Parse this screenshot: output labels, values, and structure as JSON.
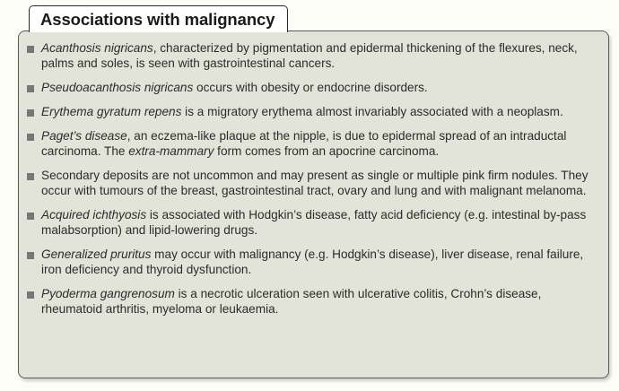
{
  "title": "Associations with malignancy",
  "items": [
    {
      "em": "Acanthosis nigricans",
      "rest": ", characterized by pigmentation and epidermal thickening of the flexures, neck, palms and soles, is seen with gastrointestinal cancers."
    },
    {
      "em": "Pseudoacanthosis nigricans",
      "rest": " occurs with obesity or endocrine disorders."
    },
    {
      "em": "Erythema gyratum repens",
      "rest": " is a migratory erythema almost invariably associated with a neoplasm."
    },
    {
      "em": "Paget’s disease",
      "rest": ", an eczema-like plaque at the nipple, is due to epidermal spread of an intraductal carcinoma. The ",
      "em2": "extra-mammary",
      "rest2": " form comes from an apocrine carcinoma."
    },
    {
      "em": "",
      "rest": "Secondary deposits are not uncommon and may present as single or multiple pink firm nodules. They occur with tumours of the breast, gastrointestinal tract, ovary and lung and with malignant melanoma."
    },
    {
      "em": "Acquired ichthyosis",
      "rest": " is associated with Hodgkin’s disease, fatty acid deficiency (e.g. intestinal by-pass malabsorption) and lipid-lowering drugs."
    },
    {
      "em": "Generalized pruritus",
      "rest": " may occur with malignancy (e.g. Hodgkin’s disease), liver disease, renal failure, iron deficiency and thyroid dysfunction."
    },
    {
      "em": "Pyoderma gangrenosum",
      "rest": " is a necrotic ulceration seen with ulcerative colitis, Crohn’s disease, rheumatoid arthritis, myeloma or leukaemia."
    }
  ]
}
